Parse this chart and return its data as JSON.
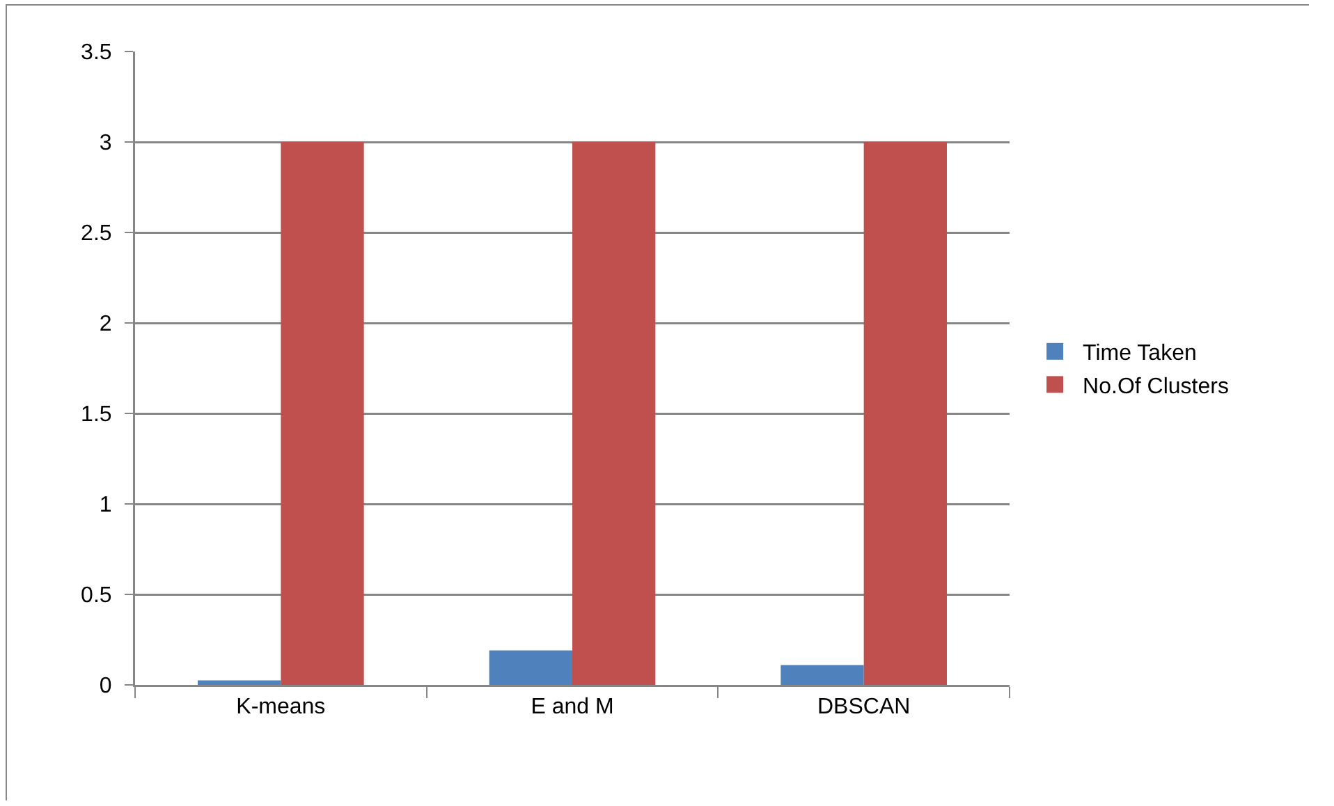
{
  "chart_data": {
    "type": "bar",
    "categories": [
      "K-means",
      "E and M",
      "DBSCAN"
    ],
    "series": [
      {
        "name": "Time Taken",
        "color": "#4f81bd",
        "values": [
          0.025,
          0.19,
          0.11
        ]
      },
      {
        "name": "No.Of Clusters",
        "color": "#c0504d",
        "values": [
          3,
          3,
          3
        ]
      }
    ],
    "ylim": [
      0,
      3.5
    ],
    "yticks": [
      0,
      0.5,
      1,
      1.5,
      2,
      2.5,
      3,
      3.5
    ],
    "grid": "y",
    "legend": "right"
  }
}
